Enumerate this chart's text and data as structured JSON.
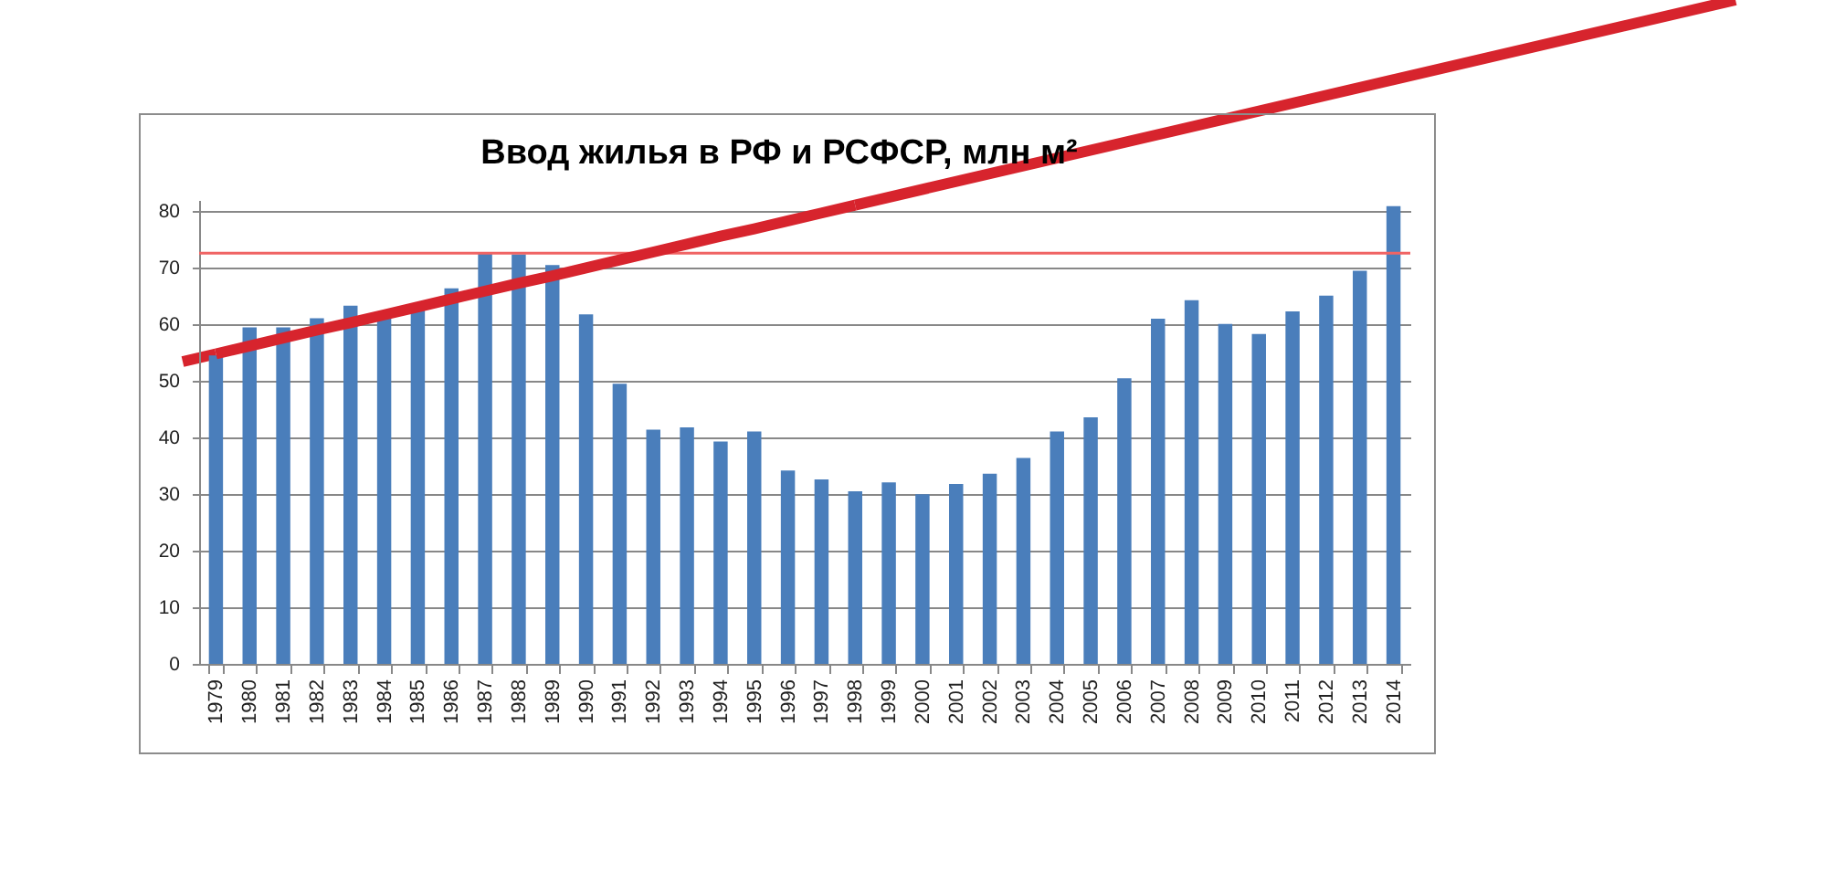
{
  "chart_data": {
    "type": "bar",
    "title": "Ввод жилья в РФ и РСФСР, млн м²",
    "categories": [
      "1979",
      "1980",
      "1981",
      "1982",
      "1983",
      "1984",
      "1985",
      "1986",
      "1987",
      "1988",
      "1989",
      "1990",
      "1991",
      "1992",
      "1993",
      "1994",
      "1995",
      "1996",
      "1997",
      "1998",
      "1999",
      "2000",
      "2001",
      "2002",
      "2003",
      "2004",
      "2005",
      "2006",
      "2007",
      "2008",
      "2009",
      "2010",
      "2011",
      "2012",
      "2013",
      "2014"
    ],
    "series": [
      {
        "color": "#4a7ebb",
        "values": [
          54.5,
          59.5,
          59.5,
          61.1,
          63.3,
          61.5,
          63.0,
          66.4,
          72.6,
          72.4,
          70.5,
          61.8,
          49.5,
          41.4,
          41.8,
          39.3,
          41.1,
          34.2,
          32.6,
          30.5,
          32.1,
          30.0,
          31.8,
          33.6,
          36.4,
          41.1,
          43.6,
          50.5,
          61.0,
          64.3,
          60.1,
          58.3,
          62.3,
          65.1,
          69.5,
          80.9
        ]
      },
      {
        "type": "line",
        "color": "#d7242d",
        "values": [
          54.8,
          56.2,
          57.6,
          59.0,
          60.3,
          61.7,
          63.1,
          64.5,
          65.9,
          67.3,
          68.6,
          70.0,
          71.4,
          72.8,
          74.2,
          75.6,
          76.9,
          78.3,
          79.7,
          81.1,
          null,
          null,
          null,
          null,
          null,
          null,
          null,
          null,
          null,
          null,
          null,
          null,
          null,
          null,
          null,
          null
        ]
      }
    ],
    "ylim": [
      0,
      82
    ],
    "yticks": [
      0,
      10,
      20,
      30,
      40,
      50,
      60,
      70,
      80
    ],
    "grid": "y",
    "ref_lines": [
      {
        "axis": "y",
        "value": 72.6,
        "color": "#f06464"
      }
    ]
  }
}
